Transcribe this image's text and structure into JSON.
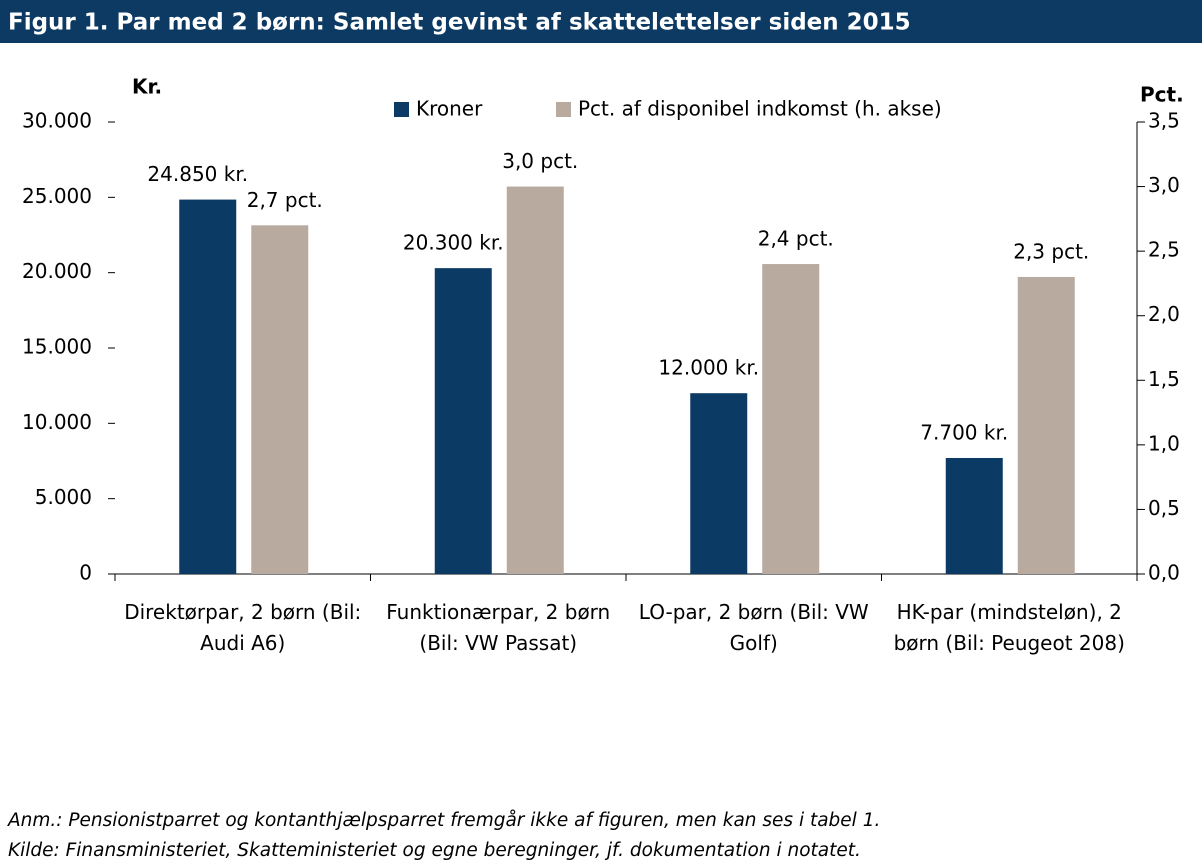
{
  "chart_data": {
    "type": "bar",
    "title": "Figur 1. Par med 2 børn: Samlet gevinst af skattelettelser siden 2015",
    "y_label": "Kr.",
    "y2_label": "Pct.",
    "categories": [
      "Direktørpar, 2 børn (Bil: Audi A6)",
      "Funktionærpar, 2 børn (Bil: VW Passat)",
      "LO-par, 2 børn (Bil: VW Golf)",
      "HK-par (mindsteløn), 2 børn (Bil: Peugeot 208)"
    ],
    "series": [
      {
        "name": "Kroner",
        "color": "#0b3a65",
        "values": [
          24850,
          20300,
          12000,
          7700
        ],
        "value_labels": [
          "24.850 kr.",
          "20.300 kr.",
          "12.000 kr.",
          "7.700 kr."
        ]
      },
      {
        "name": "Pct. af disponibel indkomst (h. akse)",
        "color": "#b9aaa0",
        "axis": "y2",
        "values": [
          2.7,
          3.0,
          2.4,
          2.3
        ],
        "value_labels": [
          "2,7 pct.",
          "3,0 pct.",
          "2,4 pct.",
          "2,3 pct."
        ]
      }
    ],
    "ylim": [
      0,
      30000
    ],
    "yticks": [
      0,
      {
        "value": 5000,
        "label": "5.000"
      },
      {
        "value": 10000,
        "label": "10.000"
      },
      {
        "value": 15000,
        "label": "15.000"
      },
      {
        "value": 20000,
        "label": "20.000"
      },
      {
        "value": 25000,
        "label": "25.000"
      },
      {
        "value": 30000,
        "label": "30.000"
      }
    ],
    "y2lim": [
      0,
      3.5
    ],
    "y2ticks": [
      {
        "value": 0,
        "label": "0,0"
      },
      {
        "value": 0.5,
        "label": "0,5"
      },
      {
        "value": 1.0,
        "label": "1,0"
      },
      {
        "value": 1.5,
        "label": "1,5"
      },
      {
        "value": 2.0,
        "label": "2,0"
      },
      {
        "value": 2.5,
        "label": "2,5"
      },
      {
        "value": 3.0,
        "label": "3,0"
      },
      {
        "value": 3.5,
        "label": "3,5"
      }
    ],
    "notes": [
      "Anm.: Pensionistparret og kontanthjælpsparret fremgår ikke af figuren, men kan ses i tabel 1.",
      "Kilde: Finansministeriet, Skatteministeriet og egne beregninger, jf. dokumentation i notatet."
    ]
  }
}
